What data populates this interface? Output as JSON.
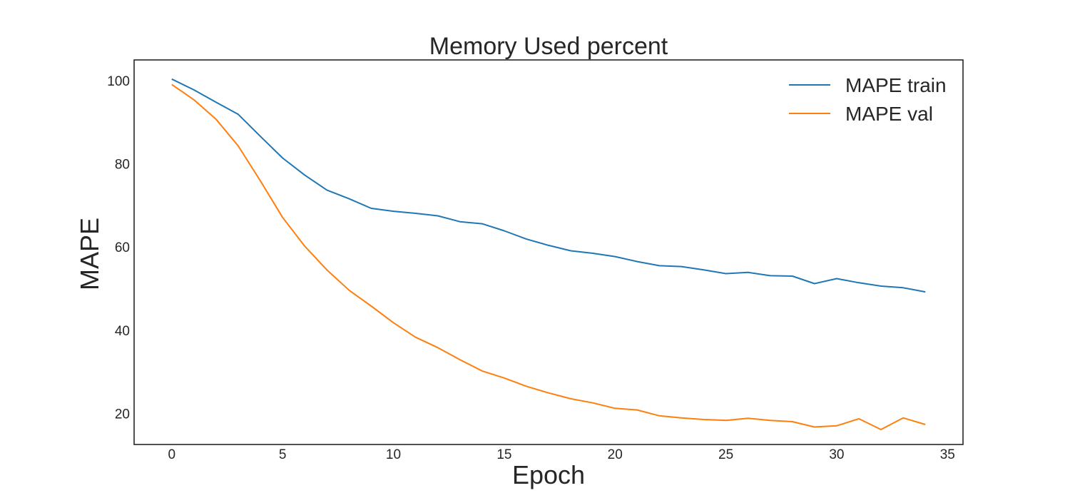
{
  "chart_data": {
    "type": "line",
    "title": "Memory Used percent",
    "xlabel": "Epoch",
    "ylabel": "MAPE",
    "xlim": [
      -1.7,
      35.7
    ],
    "ylim": [
      12.5,
      105
    ],
    "xticks": [
      0,
      5,
      10,
      15,
      20,
      25,
      30,
      35
    ],
    "yticks": [
      20,
      40,
      60,
      80,
      100
    ],
    "grid": false,
    "legend_position": "top-right",
    "x": [
      0,
      1,
      2,
      3,
      4,
      5,
      6,
      7,
      8,
      9,
      10,
      11,
      12,
      13,
      14,
      15,
      16,
      17,
      18,
      19,
      20,
      21,
      22,
      23,
      24,
      25,
      26,
      27,
      28,
      29,
      30,
      31,
      32,
      33,
      34
    ],
    "series": [
      {
        "name": "MAPE train",
        "color": "#1f77b4",
        "values": [
          100.4,
          97.8,
          94.8,
          91.9,
          86.6,
          81.4,
          77.3,
          73.7,
          71.6,
          69.3,
          68.6,
          68.1,
          67.5,
          66.1,
          65.6,
          63.9,
          61.9,
          60.4,
          59.1,
          58.5,
          57.7,
          56.5,
          55.5,
          55.3,
          54.5,
          53.6,
          53.9,
          53.1,
          53.0,
          51.2,
          52.4,
          51.4,
          50.6,
          50.2,
          49.2
        ]
      },
      {
        "name": "MAPE val",
        "color": "#ff7f0e",
        "values": [
          99.1,
          95.4,
          90.7,
          84.3,
          75.9,
          67.1,
          60.2,
          54.5,
          49.6,
          45.8,
          41.8,
          38.3,
          35.8,
          32.9,
          30.2,
          28.5,
          26.5,
          24.9,
          23.5,
          22.5,
          21.2,
          20.8,
          19.4,
          18.9,
          18.5,
          18.3,
          18.8,
          18.3,
          18.0,
          16.7,
          17.0,
          18.7,
          16.1,
          18.9,
          17.3
        ]
      }
    ]
  }
}
